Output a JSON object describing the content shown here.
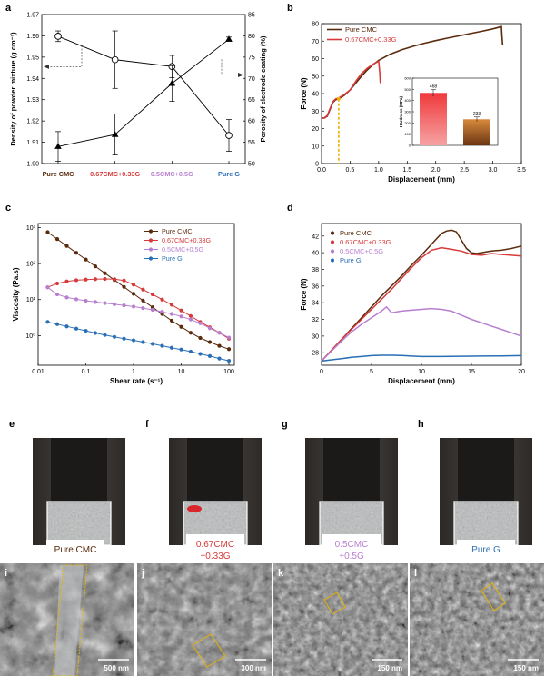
{
  "panel_letters": {
    "a": "a",
    "b": "b",
    "c": "c",
    "d": "d",
    "e": "e",
    "f": "f",
    "g": "g",
    "h": "h",
    "i": "i",
    "j": "j",
    "k": "k",
    "l": "l"
  },
  "colors": {
    "pure_cmc": "#5a2a0c",
    "cmc067": "#d63a3a",
    "cmc05": "#b87fd0",
    "pure_g": "#2a6fb5",
    "bar_red": "#e8383c",
    "bar_brown": "#a5591b",
    "guide": "#e8b400"
  },
  "chart_data": [
    {
      "id": "a",
      "type": "line",
      "categories": [
        "Pure CMC",
        "0.67CMC+0.33G",
        "0.5CMC+0.5G",
        "Pure G"
      ],
      "category_colors": [
        "#5a2a0c",
        "#d63a3a",
        "#b87fd0",
        "#2a6fb5"
      ],
      "ylabel": "Density of powder mixture (g cm⁻³)",
      "y2label": "Porosity of electrode coating (%)",
      "ylim": [
        1.9,
        1.97
      ],
      "yticks": [
        "1.90",
        "1.91",
        "1.92",
        "1.93",
        "1.94",
        "1.95",
        "1.96",
        "1.97"
      ],
      "y2lim": [
        50,
        85
      ],
      "y2ticks": [
        "50",
        "55",
        "60",
        "65",
        "70",
        "75",
        "80",
        "85"
      ],
      "series": [
        {
          "axis": "left",
          "marker": "open-circle",
          "values": [
            1.9598,
            1.9488,
            1.9456,
            1.9132
          ],
          "err": [
            0.0025,
            0.0135,
            0.0052,
            0.0075
          ]
        },
        {
          "axis": "right",
          "marker": "filled-triangle",
          "values": [
            54.0,
            56.8,
            68.8,
            79.2
          ],
          "err": [
            3.5,
            4.8,
            4.2,
            0.5
          ]
        }
      ]
    },
    {
      "id": "b",
      "type": "line",
      "xlabel": "Displacement (mm)",
      "ylabel": "Force (N)",
      "xlim": [
        0.0,
        3.5
      ],
      "xticks": [
        "0.0",
        "0.5",
        "1.0",
        "1.5",
        "2.0",
        "2.5",
        "3.0",
        "3.5"
      ],
      "ylim": [
        0,
        80
      ],
      "yticks": [
        "0",
        "10",
        "20",
        "30",
        "40",
        "50",
        "60",
        "70",
        "80"
      ],
      "legend": "top-left",
      "series": [
        {
          "name": "Pure CMC",
          "color": "#5a2a0c",
          "x": [
            0,
            0.05,
            0.1,
            0.15,
            0.2,
            0.25,
            0.3,
            0.35,
            0.4,
            0.5,
            0.6,
            0.7,
            0.8,
            0.9,
            1.0,
            1.2,
            1.4,
            1.6,
            1.8,
            2.0,
            2.2,
            2.4,
            2.6,
            2.8,
            3.0,
            3.15,
            3.16,
            3.17
          ],
          "y": [
            26,
            26,
            27,
            31,
            35,
            36.5,
            37,
            38,
            39,
            42,
            46,
            50,
            53.5,
            56.5,
            59,
            62.5,
            65,
            67,
            68.8,
            70.3,
            71.7,
            73,
            74.3,
            75.6,
            77,
            78.3,
            73,
            68
          ]
        },
        {
          "name": "0.67CMC+0.33G",
          "color": "#d63a3a",
          "x": [
            0,
            0.05,
            0.1,
            0.15,
            0.2,
            0.25,
            0.3,
            0.35,
            0.4,
            0.5,
            0.6,
            0.7,
            0.8,
            0.9,
            1.0,
            1.02,
            1.03
          ],
          "y": [
            26,
            26,
            27.5,
            31.5,
            35.5,
            37,
            37.5,
            38.5,
            39.5,
            42,
            47,
            51.5,
            54.5,
            56.8,
            58.5,
            52,
            46
          ]
        }
      ],
      "inset": {
        "type": "bar",
        "ylabel": "Hardness (MPa)",
        "ylim": [
          0,
          600
        ],
        "yticks": [
          "0",
          "100",
          "200",
          "300",
          "400",
          "500",
          "600"
        ],
        "values": [
          468,
          233
        ],
        "labels": [
          "468",
          "233"
        ],
        "err": [
          30,
          20
        ]
      }
    },
    {
      "id": "c",
      "type": "line",
      "xlabel": "Shear rate (s⁻¹)",
      "ylabel": "Viscosity (Pa.s)",
      "xscale": "log",
      "yscale": "log",
      "xticks": [
        "0.01",
        "0.1",
        "1",
        "10",
        "100"
      ],
      "yticks": [
        "10⁰",
        "10¹",
        "10²",
        "10³"
      ],
      "legend": "top-right",
      "series": [
        {
          "name": "Pure CMC",
          "color": "#5a2a0c",
          "x": [
            0.0158,
            0.0251,
            0.0398,
            0.0631,
            0.1,
            0.158,
            0.251,
            0.398,
            0.631,
            1,
            1.58,
            2.51,
            3.98,
            6.31,
            10,
            15.8,
            25.1,
            39.8,
            63.1,
            100
          ],
          "y": [
            750,
            480,
            310,
            200,
            130,
            84,
            54,
            35,
            22.5,
            14.5,
            9.4,
            6.1,
            4.0,
            2.6,
            1.75,
            1.2,
            0.86,
            0.66,
            0.52,
            0.42
          ]
        },
        {
          "name": "0.67CMC+0.33G",
          "color": "#d63a3a",
          "x": [
            0.0158,
            0.0251,
            0.0398,
            0.0631,
            0.1,
            0.158,
            0.251,
            0.398,
            0.631,
            1,
            1.58,
            2.51,
            3.98,
            6.31,
            10,
            15.8,
            25.1,
            39.8,
            63.1,
            100
          ],
          "y": [
            22,
            28,
            32,
            34.5,
            36,
            37,
            37.5,
            37,
            34,
            26,
            19,
            14,
            10,
            7.2,
            5,
            3.5,
            2.4,
            1.7,
            1.2,
            0.82
          ]
        },
        {
          "name": "0.5CMC+0.5G",
          "color": "#b87fd0",
          "x": [
            0.0158,
            0.0251,
            0.0398,
            0.0631,
            0.1,
            0.158,
            0.251,
            0.398,
            0.631,
            1,
            1.58,
            2.51,
            3.98,
            6.31,
            10,
            15.8,
            25.1,
            39.8,
            63.1,
            100
          ],
          "y": [
            22,
            14,
            11.5,
            10.2,
            9.3,
            8.6,
            8.0,
            7.4,
            6.9,
            6.4,
            5.8,
            5.2,
            4.6,
            4.0,
            3.4,
            2.8,
            2.2,
            1.6,
            1.2,
            0.88
          ]
        },
        {
          "name": "Pure G",
          "color": "#2a6fb5",
          "x": [
            0.0158,
            0.0251,
            0.0398,
            0.0631,
            0.1,
            0.158,
            0.251,
            0.398,
            0.631,
            1,
            1.58,
            2.51,
            3.98,
            6.31,
            10,
            15.8,
            25.1,
            39.8,
            63.1,
            100
          ],
          "y": [
            2.4,
            2.08,
            1.8,
            1.56,
            1.36,
            1.18,
            1.04,
            0.92,
            0.82,
            0.74,
            0.66,
            0.59,
            0.52,
            0.46,
            0.41,
            0.36,
            0.31,
            0.27,
            0.23,
            0.2
          ]
        }
      ]
    },
    {
      "id": "d",
      "type": "line",
      "xlabel": "Displacement (mm)",
      "ylabel": "Force (N)",
      "xlim": [
        0,
        20
      ],
      "xticks": [
        "0",
        "5",
        "10",
        "15",
        "20"
      ],
      "ylim": [
        26.5,
        43.5
      ],
      "yticks": [
        "28",
        "30",
        "32",
        "34",
        "36",
        "38",
        "40",
        "42"
      ],
      "legend": "top-left",
      "series": [
        {
          "name": "Pure CMC",
          "color": "#5a2a0c",
          "x": [
            0,
            1,
            2,
            3,
            4,
            5,
            6,
            7,
            8,
            9,
            10,
            11,
            12,
            12.5,
            13,
            13.5,
            14,
            14.5,
            15,
            15.5,
            16,
            17,
            18,
            19,
            20
          ],
          "y": [
            27,
            28.3,
            29.6,
            30.9,
            32.2,
            33.5,
            34.8,
            36,
            37.2,
            38.5,
            39.7,
            41,
            42.3,
            42.6,
            42.7,
            42.5,
            41.5,
            40.5,
            40,
            39.9,
            40,
            40.2,
            40.3,
            40.5,
            40.8
          ]
        },
        {
          "name": "0.67CMC+0.33G",
          "color": "#d63a3a",
          "x": [
            0,
            1,
            2,
            3,
            4,
            5,
            6,
            7,
            8,
            9,
            10,
            11,
            12,
            13,
            14,
            15,
            16,
            17,
            18,
            19,
            20
          ],
          "y": [
            27,
            28.3,
            29.6,
            30.8,
            32,
            33.2,
            34.4,
            35.6,
            36.9,
            38.2,
            39.4,
            40.3,
            40.6,
            40.4,
            40.2,
            39.8,
            39.7,
            39.9,
            39.8,
            39.7,
            39.6
          ]
        },
        {
          "name": "0.5CMC+0.5G",
          "color": "#b87fd0",
          "x": [
            0,
            1,
            2,
            3,
            4,
            5,
            6,
            6.5,
            7,
            8,
            9,
            10,
            11,
            12,
            13,
            14,
            15,
            16,
            17,
            18,
            19,
            20
          ],
          "y": [
            27,
            28.2,
            29.4,
            30.5,
            31.4,
            32.2,
            33,
            33.5,
            32.8,
            33,
            33.1,
            33.2,
            33.3,
            33.2,
            33,
            32.5,
            32,
            31.6,
            31.2,
            30.8,
            30.4,
            30
          ]
        },
        {
          "name": "Pure G",
          "color": "#2a6fb5",
          "x": [
            0,
            1,
            2,
            3,
            4,
            5,
            6,
            7,
            8,
            9,
            10,
            12,
            14,
            16,
            18,
            20
          ],
          "y": [
            27,
            27.15,
            27.3,
            27.45,
            27.55,
            27.65,
            27.7,
            27.7,
            27.68,
            27.6,
            27.55,
            27.55,
            27.58,
            27.6,
            27.62,
            27.65
          ]
        }
      ]
    }
  ],
  "photos": [
    {
      "label": "Pure CMC",
      "color": "#5a2a0c"
    },
    {
      "label": "0.67CMC\n+0.33G",
      "color": "#d63a3a"
    },
    {
      "label": "0.5CMC\n+0.5G",
      "color": "#b87fd0"
    },
    {
      "label": "Pure G",
      "color": "#2a6fb5"
    }
  ],
  "sem": [
    {
      "scale": "500 nm"
    },
    {
      "scale": "300 nm"
    },
    {
      "scale": "150 nm"
    },
    {
      "scale": "150 nm"
    }
  ]
}
